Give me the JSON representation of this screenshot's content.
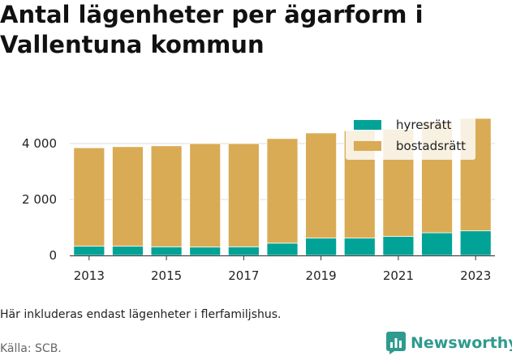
{
  "title": "Antal lägenheter per ägarform i Vallentuna kommun",
  "note": "Här inkluderas endast lägenheter i flerfamiljshus.",
  "source": "Källa: SCB.",
  "brand": {
    "name": "Newsworthy",
    "icon": "newsworthy-logo-icon",
    "color": "#2f9a8e"
  },
  "colors": {
    "hyresratt": "#00a396",
    "bostadsratt": "#d9ab55",
    "grid": "#dddddd"
  },
  "chart_data": {
    "type": "bar",
    "stacked": true,
    "categories": [
      "2013",
      "2014",
      "2015",
      "2016",
      "2017",
      "2018",
      "2019",
      "2020",
      "2021",
      "2022",
      "2023"
    ],
    "series": [
      {
        "name": "hyresrätt",
        "values": [
          330,
          330,
          310,
          300,
          310,
          440,
          620,
          620,
          680,
          810,
          880
        ]
      },
      {
        "name": "bostadsrätt",
        "values": [
          3520,
          3560,
          3610,
          3700,
          3690,
          3740,
          3760,
          3840,
          3830,
          3990,
          4020
        ]
      }
    ],
    "x_tick_labels": [
      "2013",
      "2015",
      "2017",
      "2019",
      "2021",
      "2023"
    ],
    "y_ticks": [
      0,
      2000,
      4000
    ],
    "y_tick_labels": [
      "0",
      "2 000",
      "4 000"
    ],
    "ylim": [
      0,
      4900
    ],
    "grid": true,
    "legend_position": "top-right"
  }
}
